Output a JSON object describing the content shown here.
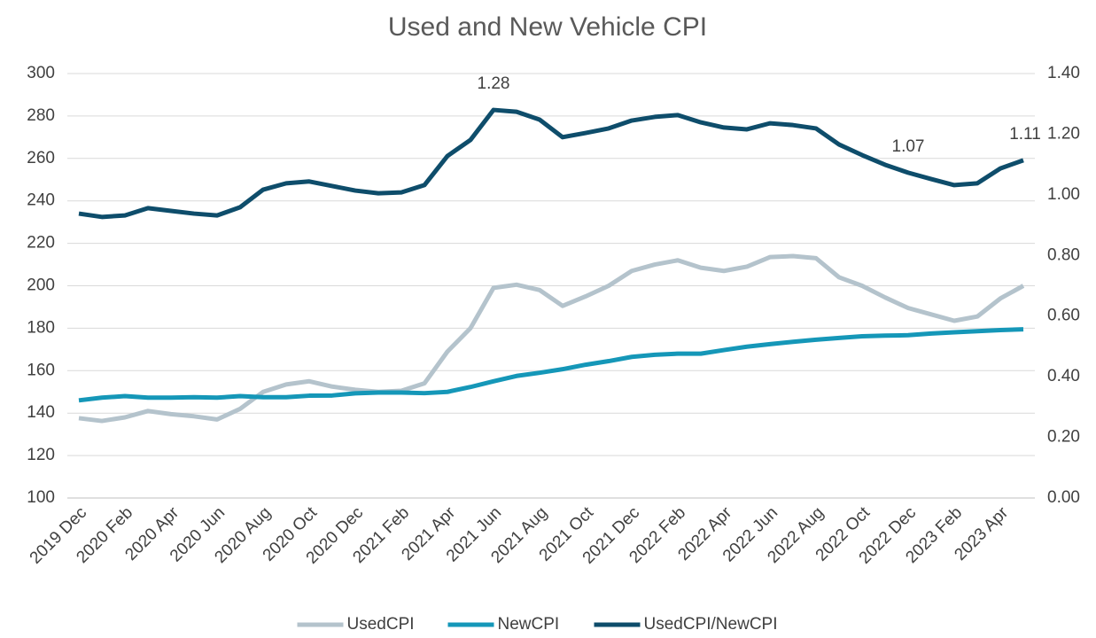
{
  "chart_data": {
    "type": "line",
    "title": "Used and New Vehicle CPI",
    "categories": [
      "2019 Dec",
      null,
      "2020 Feb",
      null,
      "2020 Apr",
      null,
      "2020 Jun",
      null,
      "2020 Aug",
      null,
      "2020 Oct",
      null,
      "2020 Dec",
      null,
      "2021 Feb",
      null,
      "2021 Apr",
      null,
      "2021 Jun",
      null,
      "2021 Aug",
      null,
      "2021 Oct",
      null,
      "2021 Dec",
      null,
      "2022 Feb",
      null,
      "2022 Apr",
      null,
      "2022 Jun",
      null,
      "2022 Aug",
      null,
      "2022 Oct",
      null,
      "2022 Dec",
      null,
      "2023 Feb",
      null,
      "2023 Apr",
      null
    ],
    "series": [
      {
        "name": "UsedCPI",
        "color": "#b4c3cc",
        "values": [
          137.6,
          136.3,
          138,
          141,
          139.5,
          138.5,
          137,
          142,
          150,
          153.5,
          155,
          152.5,
          151,
          150,
          150.5,
          154,
          169,
          180,
          199,
          200.5,
          198,
          190.5,
          195,
          200,
          207,
          210,
          212,
          208.5,
          207,
          209,
          213.5,
          214,
          213,
          204,
          200,
          194.5,
          189.5,
          186.5,
          183.5,
          185.5,
          194,
          200
        ]
      },
      {
        "name": "NewCPI",
        "color": "#1597b8",
        "values": [
          146,
          147.3,
          148,
          147.3,
          147.3,
          147.5,
          147.3,
          148,
          147.5,
          147.5,
          148.2,
          148.3,
          149.3,
          149.7,
          149.7,
          149.4,
          150,
          152.3,
          155,
          157.5,
          159,
          160.7,
          162.8,
          164.5,
          166.5,
          167.5,
          168,
          168,
          169.7,
          171.3,
          172.5,
          173.6,
          174.6,
          175.4,
          176.2,
          176.5,
          176.7,
          177.5,
          178.1,
          178.6,
          179.1,
          179.5
        ]
      },
      {
        "name": "UsedCPI/NewCPI",
        "color": "#0e4d6b",
        "axis": "y2",
        "values": [
          0.938,
          0.927,
          0.932,
          0.956,
          0.947,
          0.938,
          0.932,
          0.959,
          1.017,
          1.038,
          1.044,
          1.029,
          1.014,
          1.005,
          1.008,
          1.032,
          1.128,
          1.181,
          1.28,
          1.274,
          1.248,
          1.19,
          1.204,
          1.219,
          1.245,
          1.257,
          1.263,
          1.239,
          1.222,
          1.216,
          1.236,
          1.23,
          1.219,
          1.166,
          1.131,
          1.099,
          1.073,
          1.052,
          1.032,
          1.038,
          1.087,
          1.114
        ],
        "value_labels": [
          null,
          null,
          null,
          null,
          null,
          null,
          null,
          null,
          null,
          null,
          null,
          null,
          null,
          null,
          null,
          null,
          null,
          null,
          "1.28",
          null,
          null,
          null,
          null,
          null,
          null,
          null,
          null,
          null,
          null,
          null,
          null,
          null,
          null,
          null,
          null,
          null,
          "1.07",
          null,
          null,
          null,
          null,
          "1.11"
        ]
      }
    ],
    "ylim": [
      100,
      300
    ],
    "yticks": [
      100,
      120,
      140,
      160,
      180,
      200,
      220,
      240,
      260,
      280,
      300
    ],
    "y2lim": [
      0,
      1.4
    ],
    "y2ticks": [
      {
        "value": 0,
        "label": "0.00"
      },
      {
        "value": 0.2,
        "label": "0.20"
      },
      {
        "value": 0.4,
        "label": "0.40"
      },
      {
        "value": 0.6,
        "label": "0.60"
      },
      {
        "value": 0.8,
        "label": "0.80"
      },
      {
        "value": 1,
        "label": "1.00"
      },
      {
        "value": 1.2,
        "label": "1.20"
      },
      {
        "value": 1.4,
        "label": "1.40"
      }
    ],
    "grid": true,
    "legend": "bottom"
  }
}
